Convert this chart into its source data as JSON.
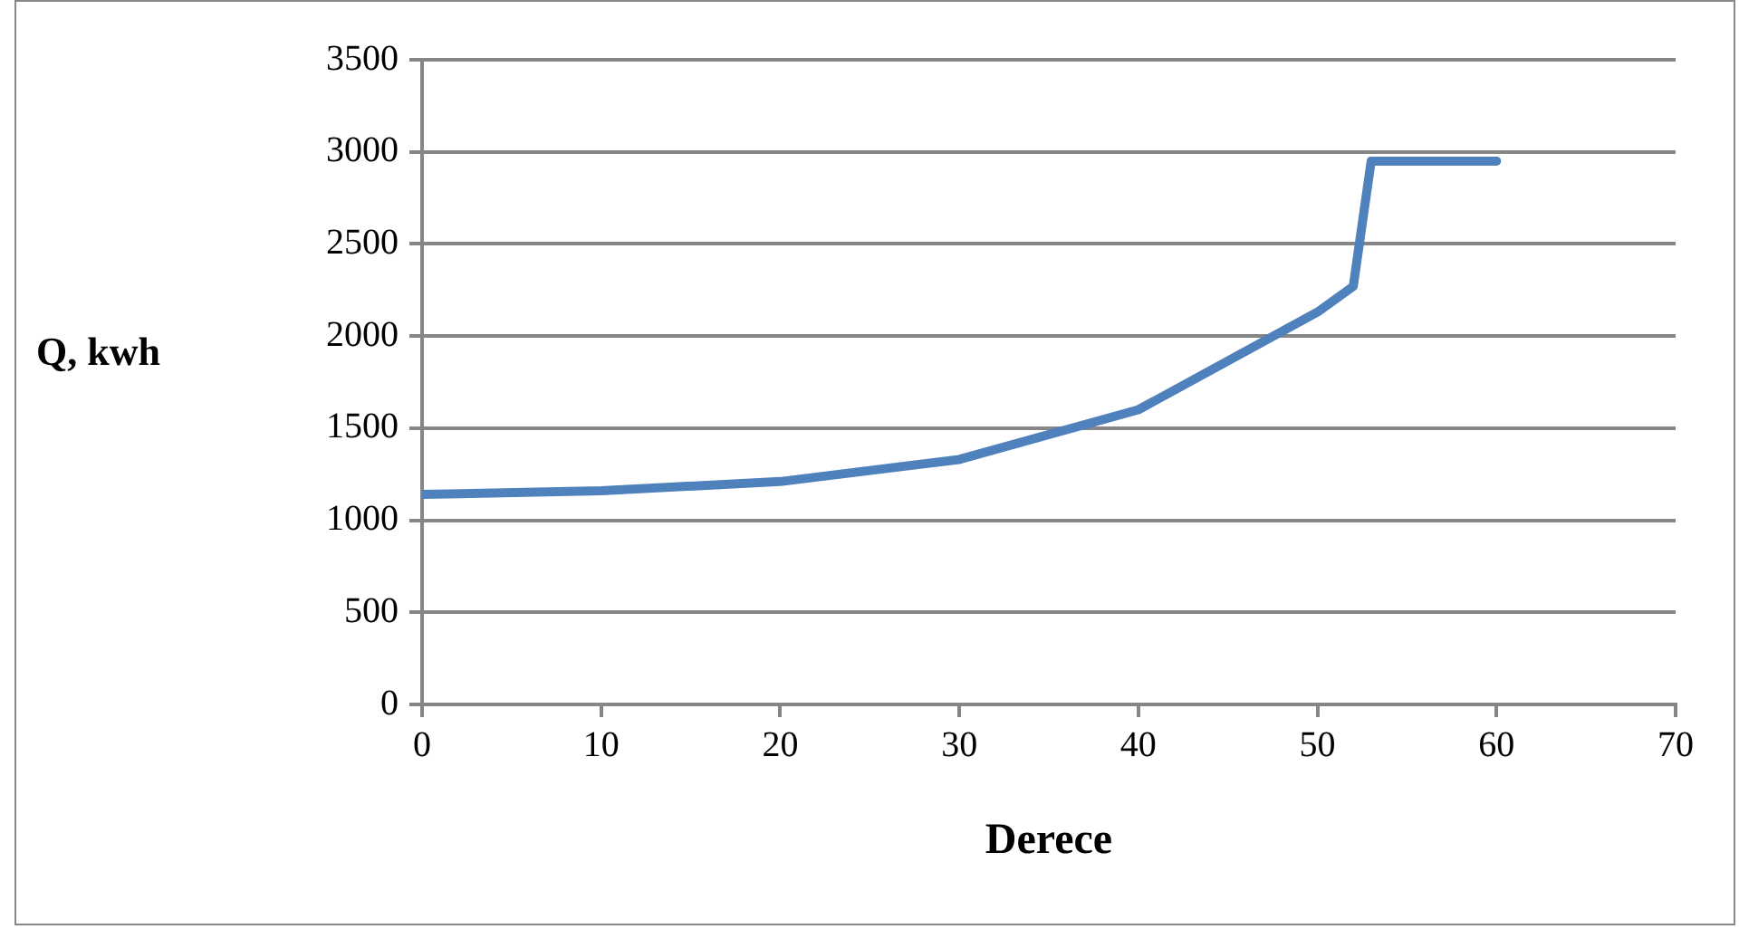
{
  "chart_data": {
    "type": "line",
    "xlabel": "Derece",
    "ylabel": "Q, kwh",
    "x": [
      0,
      10,
      20,
      30,
      40,
      50,
      52,
      53,
      60
    ],
    "series": [
      {
        "color": "#4f81bd",
        "values": [
          1140,
          1160,
          1210,
          1330,
          1600,
          2130,
          2270,
          2950,
          2950
        ]
      }
    ],
    "xlim": [
      0,
      70
    ],
    "xticks": [
      0,
      10,
      20,
      30,
      40,
      50,
      60,
      70
    ],
    "ylim": [
      0,
      3500
    ],
    "yticks": [
      0,
      500,
      1000,
      1500,
      2000,
      2500,
      3000,
      3500
    ],
    "grid": "y",
    "legend": false,
    "marker": "none",
    "line_style": "solid"
  }
}
